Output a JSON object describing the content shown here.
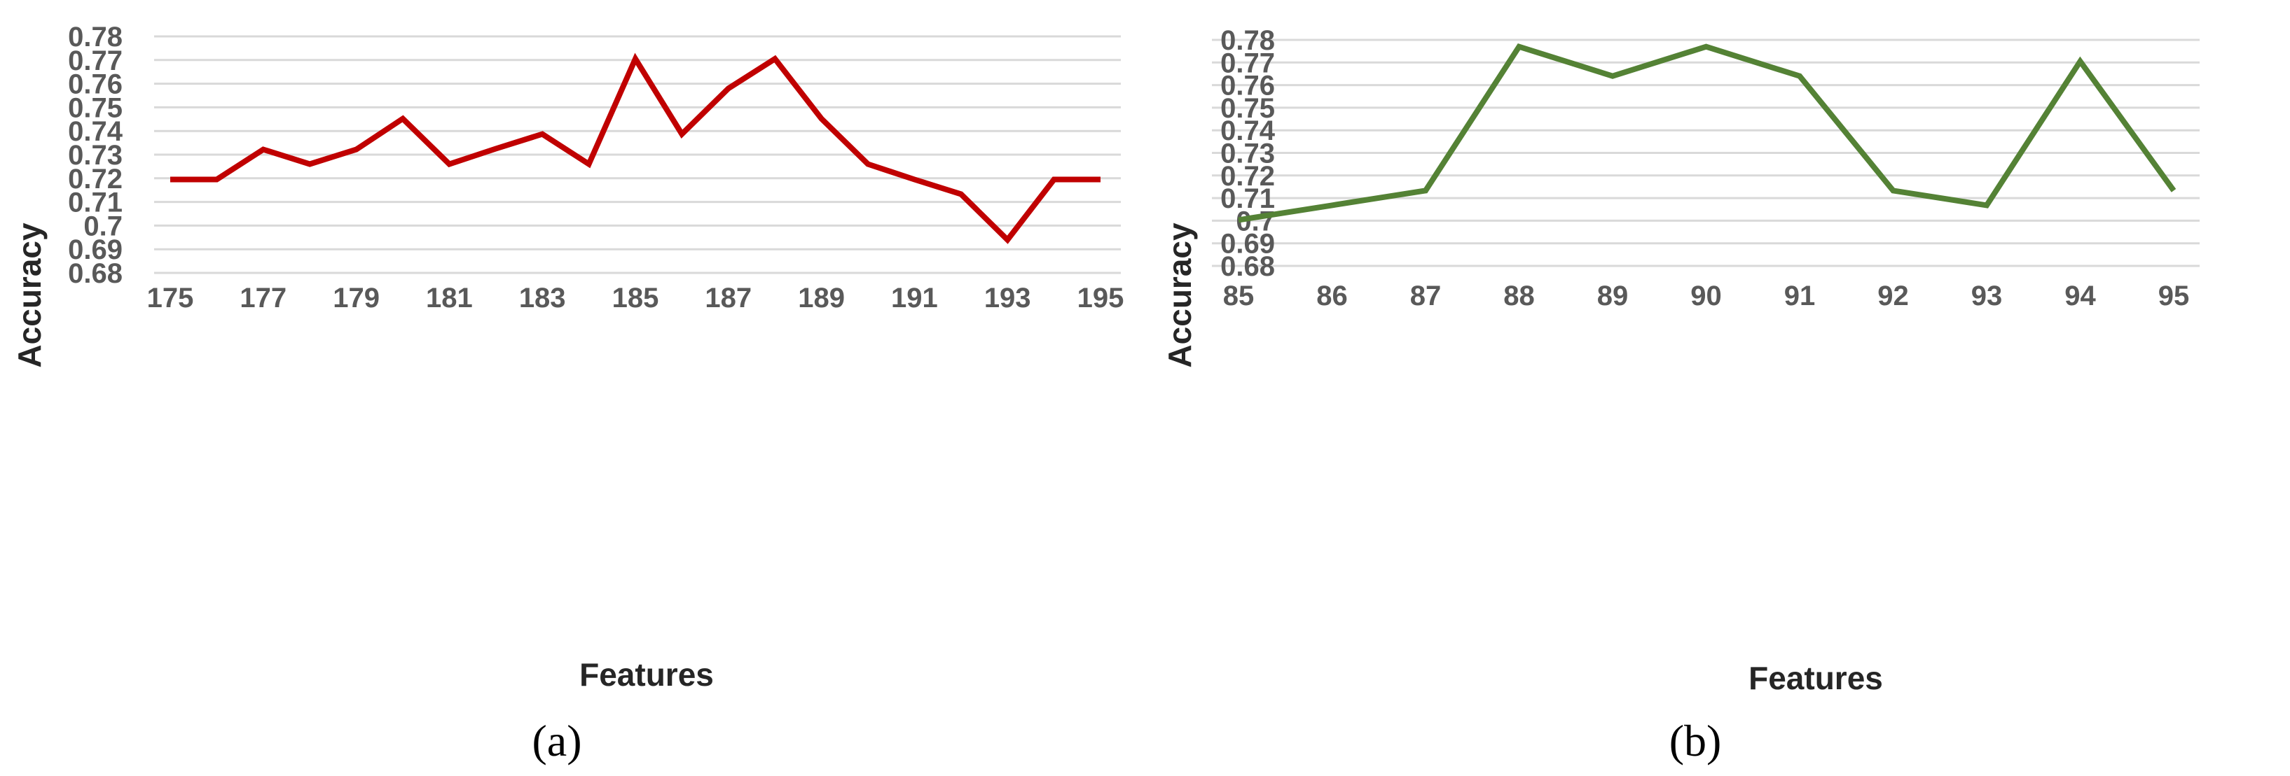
{
  "chart_data": [
    {
      "type": "line",
      "panel_label": "(a)",
      "xlabel": "Features",
      "ylabel": "Accuracy",
      "x": [
        175,
        176,
        177,
        178,
        179,
        180,
        181,
        182,
        183,
        184,
        185,
        186,
        187,
        188,
        189,
        190,
        191,
        192,
        193,
        194,
        195
      ],
      "x_tick_labels": [
        "175",
        "177",
        "179",
        "181",
        "183",
        "185",
        "187",
        "189",
        "191",
        "193",
        "195"
      ],
      "ylim": [
        0.68,
        0.78
      ],
      "y_tick_labels": [
        "0.68",
        "0.69",
        "0.7",
        "0.71",
        "0.72",
        "0.73",
        "0.74",
        "0.75",
        "0.76",
        "0.77",
        "0.78"
      ],
      "grid": true,
      "series": [
        {
          "color": "#c00000",
          "values": [
            0.7195,
            0.7195,
            0.7322,
            0.726,
            0.7322,
            0.7452,
            0.726,
            0.7325,
            0.7387,
            0.726,
            0.7705,
            0.7387,
            0.758,
            0.7705,
            0.7452,
            0.726,
            0.7195,
            0.7133,
            0.694,
            0.7195,
            0.7195
          ]
        }
      ]
    },
    {
      "type": "line",
      "panel_label": "(b)",
      "xlabel": "Features",
      "ylabel": "Accuracy",
      "x": [
        85,
        86,
        87,
        88,
        89,
        90,
        91,
        92,
        93,
        94,
        95
      ],
      "x_tick_labels": [
        "85",
        "86",
        "87",
        "88",
        "89",
        "90",
        "91",
        "92",
        "93",
        "94",
        "95"
      ],
      "ylim": [
        0.68,
        0.78
      ],
      "y_tick_labels": [
        "0.68",
        "0.69",
        "0.7",
        "0.71",
        "0.72",
        "0.73",
        "0.74",
        "0.75",
        "0.76",
        "0.77",
        "0.78"
      ],
      "grid": true,
      "series": [
        {
          "color": "#548235",
          "values": [
            0.7003,
            0.7068,
            0.7133,
            0.777,
            0.764,
            0.777,
            0.764,
            0.7133,
            0.7068,
            0.7705,
            0.7133
          ]
        }
      ]
    }
  ]
}
